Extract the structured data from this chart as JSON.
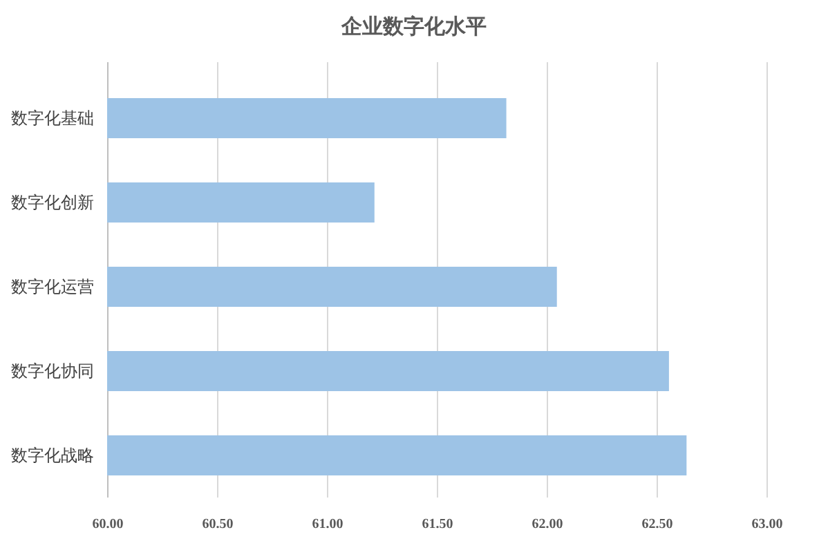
{
  "chart_data": {
    "type": "bar",
    "orientation": "horizontal",
    "title": "企业数字化水平",
    "categories": [
      "数字化基础",
      "数字化创新",
      "数字化运营",
      "数字化协同",
      "数字化战略"
    ],
    "values": [
      61.81,
      61.21,
      62.04,
      62.55,
      62.63
    ],
    "color": "#9dc3e6",
    "xlim": [
      60,
      63
    ],
    "xticks": [
      {
        "value": 60,
        "label": "60.00"
      },
      {
        "value": 60.5,
        "label": "60.50"
      },
      {
        "value": 61,
        "label": "61.00"
      },
      {
        "value": 61.5,
        "label": "61.50"
      },
      {
        "value": 62,
        "label": "62.00"
      },
      {
        "value": 62.5,
        "label": "62.50"
      },
      {
        "value": 63,
        "label": "63.00"
      }
    ],
    "grid": "x"
  }
}
